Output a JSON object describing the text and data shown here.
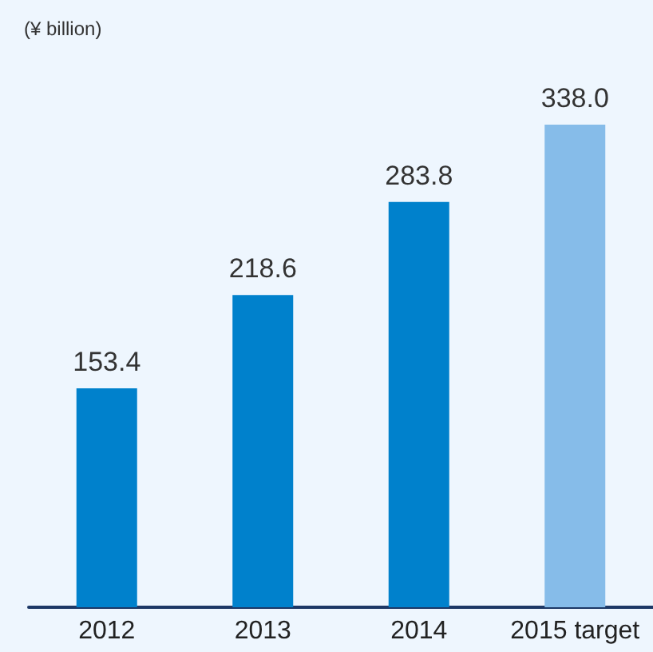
{
  "chart_data": {
    "type": "bar",
    "subtitle": "(¥ billion)",
    "categories": [
      "2012",
      "2013",
      "2014",
      "2015 target"
    ],
    "values": [
      153.4,
      218.6,
      283.8,
      338.0
    ],
    "value_labels": [
      "153.4",
      "218.6",
      "283.8",
      "338.0"
    ],
    "colors": [
      "#0081cc",
      "#0081cc",
      "#0081cc",
      "#86bce9"
    ]
  }
}
